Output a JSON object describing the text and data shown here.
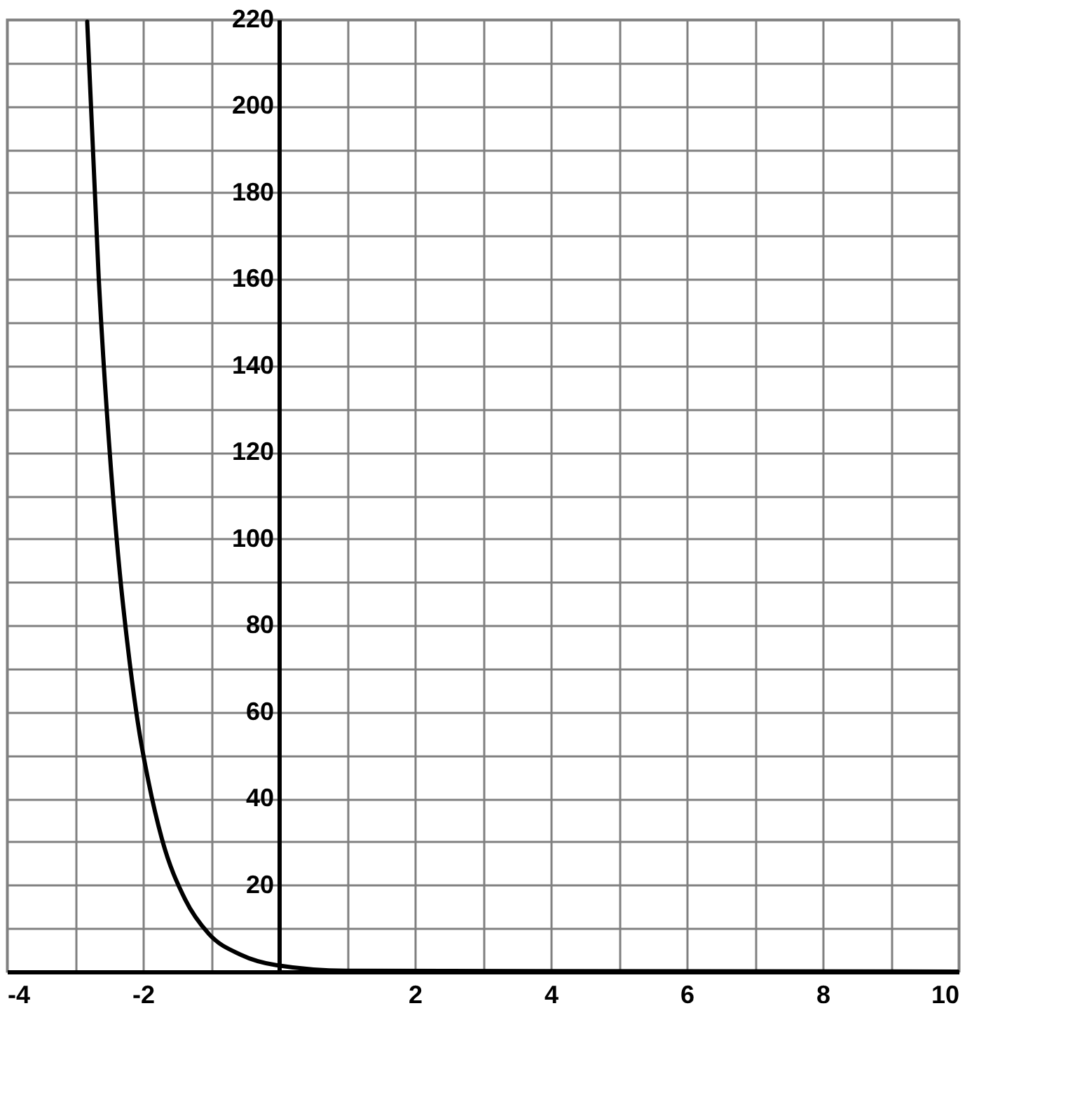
{
  "chart_data": {
    "type": "line",
    "x": [
      -2.82,
      -2.65,
      -2.47,
      -2.34,
      -2.23,
      -2.06,
      -1.92,
      -1.72,
      -1.38,
      -1.03,
      -0.56,
      -0.04,
      1,
      10
    ],
    "series": [
      {
        "color": "#000000",
        "values": [
          219.5,
          160,
          116,
          92,
          76,
          56,
          44,
          30.6,
          16.7,
          8.7,
          3.9,
          1.5,
          0.2,
          0
        ]
      }
    ],
    "xlim": [
      -4,
      10
    ],
    "xticks": [
      -4,
      {
        "value": -3,
        "label": null
      },
      -2,
      {
        "value": -1,
        "label": null
      },
      {
        "value": 0,
        "label": null
      },
      {
        "value": 1,
        "label": null
      },
      2,
      {
        "value": 3,
        "label": null
      },
      4,
      {
        "value": 5,
        "label": null
      },
      6,
      {
        "value": 7,
        "label": null
      },
      8,
      {
        "value": 9,
        "label": null
      },
      10
    ],
    "ylim": [
      0,
      220
    ],
    "yticks": [
      {
        "value": 0,
        "label": null
      },
      {
        "value": 10,
        "label": null
      },
      20,
      {
        "value": 30,
        "label": null
      },
      40,
      {
        "value": 50,
        "label": null
      },
      60,
      {
        "value": 70,
        "label": null
      },
      80,
      {
        "value": 90,
        "label": null
      },
      100,
      {
        "value": 110,
        "label": null
      },
      120,
      {
        "value": 130,
        "label": null
      },
      140,
      {
        "value": 150,
        "label": null
      },
      160,
      {
        "value": 170,
        "label": null
      },
      180,
      {
        "value": 190,
        "label": null
      },
      200,
      {
        "value": 210,
        "label": null
      },
      220
    ],
    "grid": true,
    "marker": "none",
    "line_style": "solid"
  }
}
